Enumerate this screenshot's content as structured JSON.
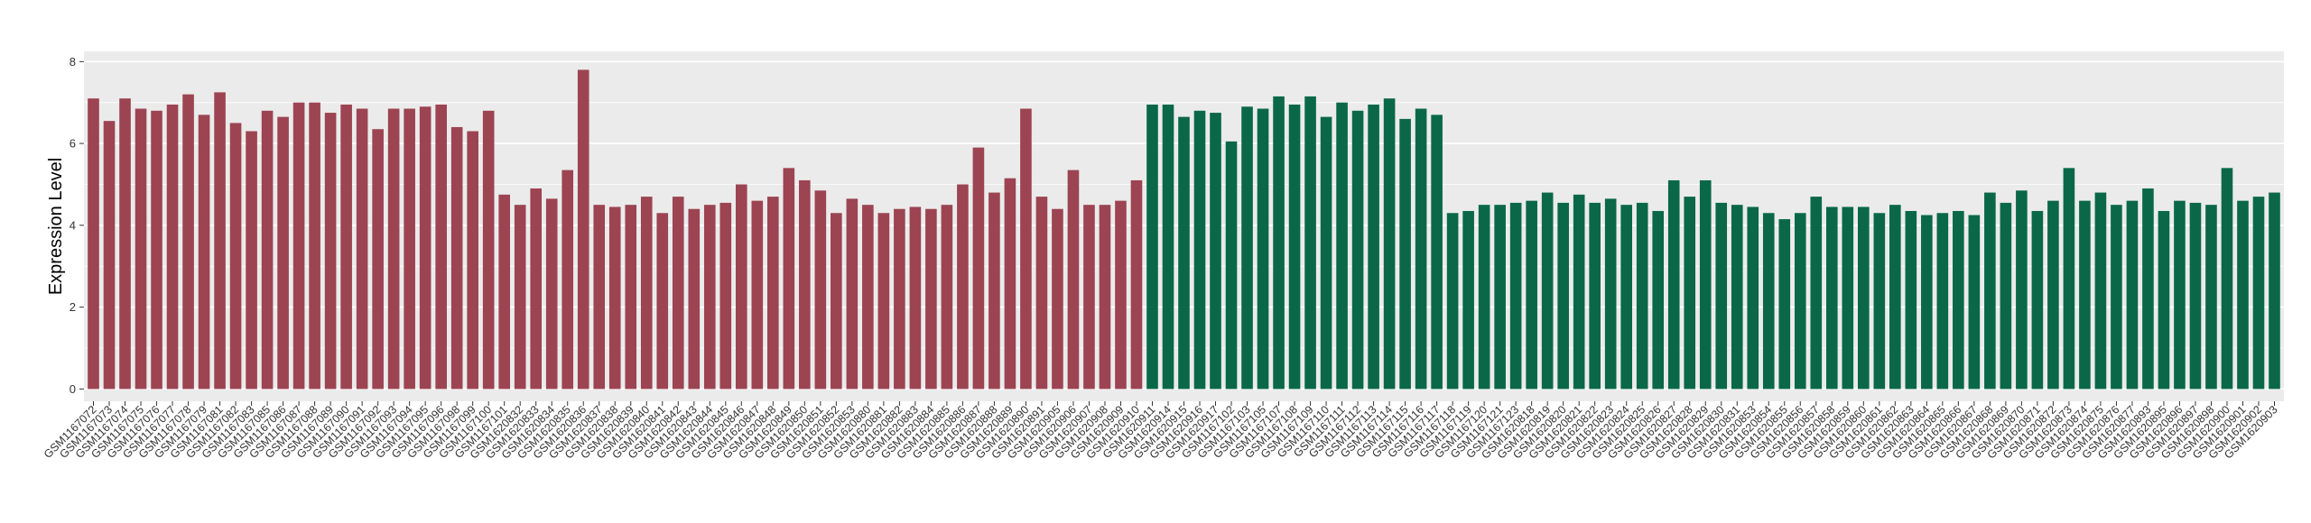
{
  "chart_data": {
    "type": "bar",
    "title": "",
    "xlabel": "",
    "ylabel": "Expression Level",
    "ylim": [
      0,
      8
    ],
    "y_ticks": [
      0,
      2,
      4,
      6,
      8
    ],
    "grid": true,
    "legend": "none",
    "colors": {
      "group1": "#9C4452",
      "group2": "#0A6848",
      "panel": "#EBEBEB",
      "gridline": "#FFFFFF"
    },
    "bars": [
      {
        "label": "GSM1167072",
        "value": 7.1,
        "group": 1
      },
      {
        "label": "GSM1167073",
        "value": 6.55,
        "group": 1
      },
      {
        "label": "GSM1167074",
        "value": 7.1,
        "group": 1
      },
      {
        "label": "GSM1167075",
        "value": 6.85,
        "group": 1
      },
      {
        "label": "GSM1167076",
        "value": 6.8,
        "group": 1
      },
      {
        "label": "GSM1167077",
        "value": 6.95,
        "group": 1
      },
      {
        "label": "GSM1167078",
        "value": 7.2,
        "group": 1
      },
      {
        "label": "GSM1167079",
        "value": 6.7,
        "group": 1
      },
      {
        "label": "GSM1167081",
        "value": 7.25,
        "group": 1
      },
      {
        "label": "GSM1167082",
        "value": 6.5,
        "group": 1
      },
      {
        "label": "GSM1167083",
        "value": 6.3,
        "group": 1
      },
      {
        "label": "GSM1167085",
        "value": 6.8,
        "group": 1
      },
      {
        "label": "GSM1167086",
        "value": 6.65,
        "group": 1
      },
      {
        "label": "GSM1167087",
        "value": 7.0,
        "group": 1
      },
      {
        "label": "GSM1167088",
        "value": 7.0,
        "group": 1
      },
      {
        "label": "GSM1167089",
        "value": 6.75,
        "group": 1
      },
      {
        "label": "GSM1167090",
        "value": 6.95,
        "group": 1
      },
      {
        "label": "GSM1167091",
        "value": 6.85,
        "group": 1
      },
      {
        "label": "GSM1167092",
        "value": 6.35,
        "group": 1
      },
      {
        "label": "GSM1167093",
        "value": 6.85,
        "group": 1
      },
      {
        "label": "GSM1167094",
        "value": 6.85,
        "group": 1
      },
      {
        "label": "GSM1167095",
        "value": 6.9,
        "group": 1
      },
      {
        "label": "GSM1167096",
        "value": 6.95,
        "group": 1
      },
      {
        "label": "GSM1167098",
        "value": 6.4,
        "group": 1
      },
      {
        "label": "GSM1167099",
        "value": 6.3,
        "group": 1
      },
      {
        "label": "GSM1167100",
        "value": 6.8,
        "group": 1
      },
      {
        "label": "GSM1167101",
        "value": 4.75,
        "group": 1
      },
      {
        "label": "GSM1620832",
        "value": 4.5,
        "group": 1
      },
      {
        "label": "GSM1620833",
        "value": 4.9,
        "group": 1
      },
      {
        "label": "GSM1620834",
        "value": 4.65,
        "group": 1
      },
      {
        "label": "GSM1620835",
        "value": 5.35,
        "group": 1
      },
      {
        "label": "GSM1620836",
        "value": 7.8,
        "group": 1
      },
      {
        "label": "GSM1620837",
        "value": 4.5,
        "group": 1
      },
      {
        "label": "GSM1620838",
        "value": 4.45,
        "group": 1
      },
      {
        "label": "GSM1620839",
        "value": 4.5,
        "group": 1
      },
      {
        "label": "GSM1620840",
        "value": 4.7,
        "group": 1
      },
      {
        "label": "GSM1620841",
        "value": 4.3,
        "group": 1
      },
      {
        "label": "GSM1620842",
        "value": 4.7,
        "group": 1
      },
      {
        "label": "GSM1620843",
        "value": 4.4,
        "group": 1
      },
      {
        "label": "GSM1620844",
        "value": 4.5,
        "group": 1
      },
      {
        "label": "GSM1620845",
        "value": 4.55,
        "group": 1
      },
      {
        "label": "GSM1620846",
        "value": 5.0,
        "group": 1
      },
      {
        "label": "GSM1620847",
        "value": 4.6,
        "group": 1
      },
      {
        "label": "GSM1620848",
        "value": 4.7,
        "group": 1
      },
      {
        "label": "GSM1620849",
        "value": 5.4,
        "group": 1
      },
      {
        "label": "GSM1620850",
        "value": 5.1,
        "group": 1
      },
      {
        "label": "GSM1620851",
        "value": 4.85,
        "group": 1
      },
      {
        "label": "GSM1620852",
        "value": 4.3,
        "group": 1
      },
      {
        "label": "GSM1620853",
        "value": 4.65,
        "group": 1
      },
      {
        "label": "GSM1620880",
        "value": 4.5,
        "group": 1
      },
      {
        "label": "GSM1620881",
        "value": 4.3,
        "group": 1
      },
      {
        "label": "GSM1620882",
        "value": 4.4,
        "group": 1
      },
      {
        "label": "GSM1620883",
        "value": 4.45,
        "group": 1
      },
      {
        "label": "GSM1620884",
        "value": 4.4,
        "group": 1
      },
      {
        "label": "GSM1620885",
        "value": 4.5,
        "group": 1
      },
      {
        "label": "GSM1620886",
        "value": 5.0,
        "group": 1
      },
      {
        "label": "GSM1620887",
        "value": 5.9,
        "group": 1
      },
      {
        "label": "GSM1620888",
        "value": 4.8,
        "group": 1
      },
      {
        "label": "GSM1620889",
        "value": 5.15,
        "group": 1
      },
      {
        "label": "GSM1620890",
        "value": 6.85,
        "group": 1
      },
      {
        "label": "GSM1620891",
        "value": 4.7,
        "group": 1
      },
      {
        "label": "GSM1620905",
        "value": 4.4,
        "group": 1
      },
      {
        "label": "GSM1620906",
        "value": 5.35,
        "group": 1
      },
      {
        "label": "GSM1620907",
        "value": 4.5,
        "group": 1
      },
      {
        "label": "GSM1620908",
        "value": 4.5,
        "group": 1
      },
      {
        "label": "GSM1620909",
        "value": 4.6,
        "group": 1
      },
      {
        "label": "GSM1620910",
        "value": 5.1,
        "group": 1
      },
      {
        "label": "GSM1620911",
        "value": 6.95,
        "group": 2
      },
      {
        "label": "GSM1620914",
        "value": 6.95,
        "group": 2
      },
      {
        "label": "GSM1620915",
        "value": 6.65,
        "group": 2
      },
      {
        "label": "GSM1620916",
        "value": 6.8,
        "group": 2
      },
      {
        "label": "GSM1620917",
        "value": 6.75,
        "group": 2
      },
      {
        "label": "GSM1167102",
        "value": 6.05,
        "group": 2
      },
      {
        "label": "GSM1167103",
        "value": 6.9,
        "group": 2
      },
      {
        "label": "GSM1167105",
        "value": 6.85,
        "group": 2
      },
      {
        "label": "GSM1167107",
        "value": 7.15,
        "group": 2
      },
      {
        "label": "GSM1167108",
        "value": 6.95,
        "group": 2
      },
      {
        "label": "GSM1167109",
        "value": 7.15,
        "group": 2
      },
      {
        "label": "GSM1167110",
        "value": 6.65,
        "group": 2
      },
      {
        "label": "GSM1167111",
        "value": 7.0,
        "group": 2
      },
      {
        "label": "GSM1167112",
        "value": 6.8,
        "group": 2
      },
      {
        "label": "GSM1167113",
        "value": 6.95,
        "group": 2
      },
      {
        "label": "GSM1167114",
        "value": 7.1,
        "group": 2
      },
      {
        "label": "GSM1167115",
        "value": 6.6,
        "group": 2
      },
      {
        "label": "GSM1167116",
        "value": 6.85,
        "group": 2
      },
      {
        "label": "GSM1167117",
        "value": 6.7,
        "group": 2
      },
      {
        "label": "GSM1167118",
        "value": 4.3,
        "group": 2
      },
      {
        "label": "GSM1167119",
        "value": 4.35,
        "group": 2
      },
      {
        "label": "GSM1167120",
        "value": 4.5,
        "group": 2
      },
      {
        "label": "GSM1167121",
        "value": 4.5,
        "group": 2
      },
      {
        "label": "GSM1167123",
        "value": 4.55,
        "group": 2
      },
      {
        "label": "GSM1620818",
        "value": 4.6,
        "group": 2
      },
      {
        "label": "GSM1620819",
        "value": 4.8,
        "group": 2
      },
      {
        "label": "GSM1620820",
        "value": 4.55,
        "group": 2
      },
      {
        "label": "GSM1620821",
        "value": 4.75,
        "group": 2
      },
      {
        "label": "GSM1620822",
        "value": 4.55,
        "group": 2
      },
      {
        "label": "GSM1620823",
        "value": 4.65,
        "group": 2
      },
      {
        "label": "GSM1620824",
        "value": 4.5,
        "group": 2
      },
      {
        "label": "GSM1620825",
        "value": 4.55,
        "group": 2
      },
      {
        "label": "GSM1620826",
        "value": 4.35,
        "group": 2
      },
      {
        "label": "GSM1620827",
        "value": 5.1,
        "group": 2
      },
      {
        "label": "GSM1620828",
        "value": 4.7,
        "group": 2
      },
      {
        "label": "GSM1620829",
        "value": 5.1,
        "group": 2
      },
      {
        "label": "GSM1620830",
        "value": 4.55,
        "group": 2
      },
      {
        "label": "GSM1620831",
        "value": 4.5,
        "group": 2
      },
      {
        "label": "GSM1620853",
        "value": 4.45,
        "group": 2
      },
      {
        "label": "GSM1620854",
        "value": 4.3,
        "group": 2
      },
      {
        "label": "GSM1620855",
        "value": 4.15,
        "group": 2
      },
      {
        "label": "GSM1620856",
        "value": 4.3,
        "group": 2
      },
      {
        "label": "GSM1620857",
        "value": 4.7,
        "group": 2
      },
      {
        "label": "GSM1620858",
        "value": 4.45,
        "group": 2
      },
      {
        "label": "GSM1620859",
        "value": 4.45,
        "group": 2
      },
      {
        "label": "GSM1620860",
        "value": 4.45,
        "group": 2
      },
      {
        "label": "GSM1620861",
        "value": 4.3,
        "group": 2
      },
      {
        "label": "GSM1620862",
        "value": 4.5,
        "group": 2
      },
      {
        "label": "GSM1620863",
        "value": 4.35,
        "group": 2
      },
      {
        "label": "GSM1620864",
        "value": 4.25,
        "group": 2
      },
      {
        "label": "GSM1620865",
        "value": 4.3,
        "group": 2
      },
      {
        "label": "GSM1620866",
        "value": 4.35,
        "group": 2
      },
      {
        "label": "GSM1620867",
        "value": 4.25,
        "group": 2
      },
      {
        "label": "GSM1620868",
        "value": 4.8,
        "group": 2
      },
      {
        "label": "GSM1620869",
        "value": 4.55,
        "group": 2
      },
      {
        "label": "GSM1620870",
        "value": 4.85,
        "group": 2
      },
      {
        "label": "GSM1620871",
        "value": 4.35,
        "group": 2
      },
      {
        "label": "GSM1620872",
        "value": 4.6,
        "group": 2
      },
      {
        "label": "GSM1620873",
        "value": 5.4,
        "group": 2
      },
      {
        "label": "GSM1620874",
        "value": 4.6,
        "group": 2
      },
      {
        "label": "GSM1620875",
        "value": 4.8,
        "group": 2
      },
      {
        "label": "GSM1620876",
        "value": 4.5,
        "group": 2
      },
      {
        "label": "GSM1620877",
        "value": 4.6,
        "group": 2
      },
      {
        "label": "GSM1620893",
        "value": 4.9,
        "group": 2
      },
      {
        "label": "GSM1620895",
        "value": 4.35,
        "group": 2
      },
      {
        "label": "GSM1620896",
        "value": 4.6,
        "group": 2
      },
      {
        "label": "GSM1620897",
        "value": 4.55,
        "group": 2
      },
      {
        "label": "GSM1620898",
        "value": 4.5,
        "group": 2
      },
      {
        "label": "GSM1620900",
        "value": 5.4,
        "group": 2
      },
      {
        "label": "GSM1620901",
        "value": 4.6,
        "group": 2
      },
      {
        "label": "GSM1620902",
        "value": 4.7,
        "group": 2
      },
      {
        "label": "GSM1620903",
        "value": 4.8,
        "group": 2
      }
    ]
  }
}
